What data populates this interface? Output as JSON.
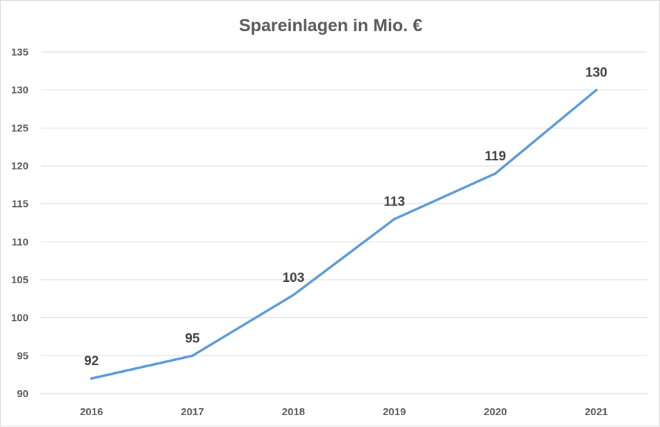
{
  "chart_data": {
    "type": "line",
    "title": "Spareinlagen in Mio. €",
    "xlabel": "",
    "ylabel": "",
    "categories": [
      "2016",
      "2017",
      "2018",
      "2019",
      "2020",
      "2021"
    ],
    "values": [
      92,
      95,
      103,
      113,
      119,
      130
    ],
    "yticks": [
      "90",
      "95",
      "100",
      "105",
      "110",
      "115",
      "120",
      "125",
      "130",
      "135"
    ],
    "ylim": [
      90,
      135
    ],
    "grid": true,
    "legend": "none",
    "data_labels": [
      "92",
      "95",
      "103",
      "113",
      "119",
      "130"
    ],
    "line_color": "#5b9bd5"
  }
}
